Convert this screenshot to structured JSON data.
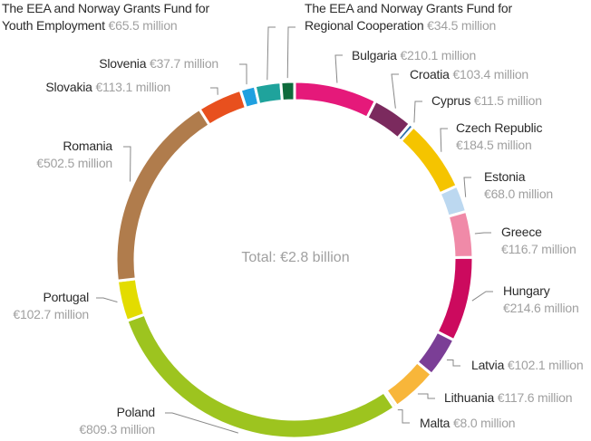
{
  "chart_data": {
    "type": "donut",
    "total_label": "Total: €2.8 billion",
    "categories": [
      "Bulgaria",
      "Croatia",
      "Cyprus",
      "Czech Republic",
      "Estonia",
      "Greece",
      "Hungary",
      "Latvia",
      "Lithuania",
      "Malta",
      "Poland",
      "Portugal",
      "Romania",
      "Slovakia",
      "Slovenia",
      "The EEA and Norway Grants Fund for Youth Employment",
      "The EEA and Norway Grants Fund for Regional Cooperation"
    ],
    "values": [
      210.1,
      103.4,
      11.5,
      184.5,
      68.0,
      116.7,
      214.6,
      102.1,
      117.6,
      8.0,
      809.3,
      102.7,
      502.5,
      113.1,
      37.7,
      65.5,
      34.5
    ],
    "value_labels": [
      "€210.1 million",
      "€103.4 million",
      "€11.5 million",
      "€184.5 million",
      "€68.0 million",
      "€116.7 million",
      "€214.6 million",
      "€102.1 million",
      "€117.6 million",
      "€8.0 million",
      "€809.3 million",
      "€102.7 million",
      "€502.5 million",
      "€113.1 million",
      "€37.7 million",
      "€65.5 million",
      "€34.5 million"
    ],
    "colors": [
      "#e5197a",
      "#7b2a5e",
      "#2d6ea8",
      "#f5c400",
      "#bcd8f0",
      "#f08aa8",
      "#cc0a5e",
      "#7b3e96",
      "#f8b63a",
      "#efe3a6",
      "#9dc41f",
      "#e3dc00",
      "#b07c4c",
      "#e8501e",
      "#1fa0e0",
      "#1fa39c",
      "#0e6b3c"
    ]
  }
}
